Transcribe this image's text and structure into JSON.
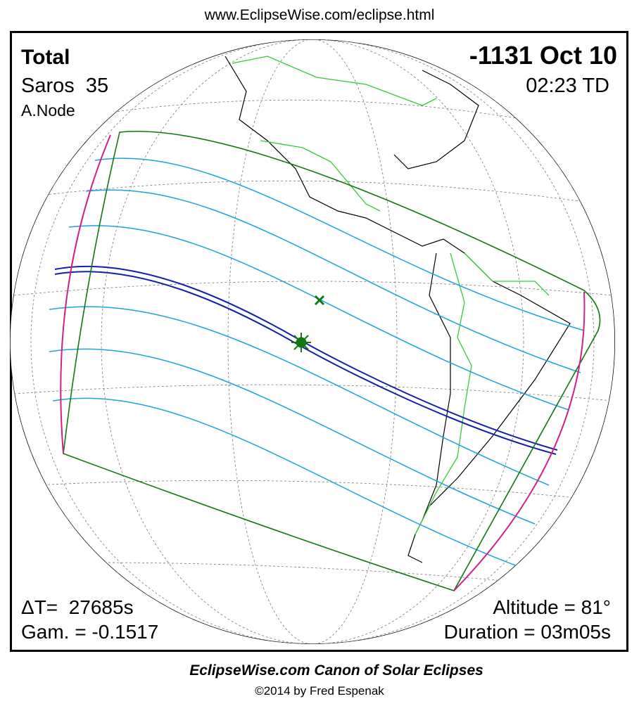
{
  "header": {
    "url": "www.EclipseWise.com/eclipse.html"
  },
  "eclipse": {
    "type": "Total",
    "saros": "Saros  35",
    "node": "A.Node",
    "date": "-1131 Oct 10",
    "time": "02:23 TD",
    "delta_t": "ΔT=  27685s",
    "gamma": "Gam. = -0.1517",
    "altitude": "Altitude = 81°",
    "duration": "Duration = 03m05s"
  },
  "footer": {
    "title": "EclipseWise.com Canon of Solar Eclipses",
    "copyright": "©2014 by Fred Espenak"
  }
}
